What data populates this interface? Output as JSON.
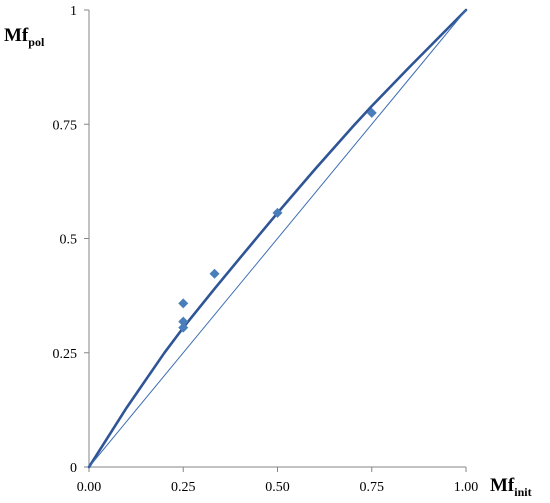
{
  "chart_data": {
    "type": "scatter",
    "title": "",
    "x_range": [
      0,
      1
    ],
    "y_range": [
      0,
      1
    ],
    "x_ticks": [
      {
        "value": 0,
        "label": "0.00"
      },
      {
        "value": 0.25,
        "label": "0.25"
      },
      {
        "value": 0.5,
        "label": "0.50"
      },
      {
        "value": 0.75,
        "label": "0.75"
      },
      {
        "value": 1,
        "label": "1.00"
      }
    ],
    "y_ticks": [
      {
        "value": 0,
        "label": "0"
      },
      {
        "value": 0.25,
        "label": "0.25"
      },
      {
        "value": 0.5,
        "label": "0.5"
      },
      {
        "value": 0.75,
        "label": "0.75"
      },
      {
        "value": 1,
        "label": "1"
      }
    ],
    "xlabel": {
      "main": "Mf",
      "sub": "init"
    },
    "ylabel": {
      "main": "Mf",
      "sub": "pol"
    },
    "grid": false,
    "legend": "none",
    "colors": {
      "axis": "#868686",
      "points": "#4a7ebb",
      "fit_line": "#2f5597",
      "reference_line": "#3d6eb4"
    },
    "series": [
      {
        "type": "scatter",
        "marker": "diamond",
        "points": [
          {
            "x": 0.25,
            "y": 0.358
          },
          {
            "x": 0.25,
            "y": 0.318
          },
          {
            "x": 0.25,
            "y": 0.305
          },
          {
            "x": 0.333,
            "y": 0.423
          },
          {
            "x": 0.5,
            "y": 0.556
          },
          {
            "x": 0.75,
            "y": 0.775
          }
        ]
      },
      {
        "type": "line",
        "role": "fit",
        "points": [
          {
            "x": 0,
            "y": 0
          },
          {
            "x": 0.1,
            "y": 0.13
          },
          {
            "x": 0.2,
            "y": 0.25
          },
          {
            "x": 0.25,
            "y": 0.305
          },
          {
            "x": 0.333,
            "y": 0.39
          },
          {
            "x": 0.4,
            "y": 0.457
          },
          {
            "x": 0.5,
            "y": 0.556
          },
          {
            "x": 0.6,
            "y": 0.652
          },
          {
            "x": 0.7,
            "y": 0.745
          },
          {
            "x": 0.75,
            "y": 0.79
          },
          {
            "x": 0.85,
            "y": 0.875
          },
          {
            "x": 1,
            "y": 1
          }
        ]
      },
      {
        "type": "line",
        "role": "reference",
        "points": [
          {
            "x": 0,
            "y": 0
          },
          {
            "x": 1,
            "y": 1
          }
        ]
      }
    ]
  }
}
